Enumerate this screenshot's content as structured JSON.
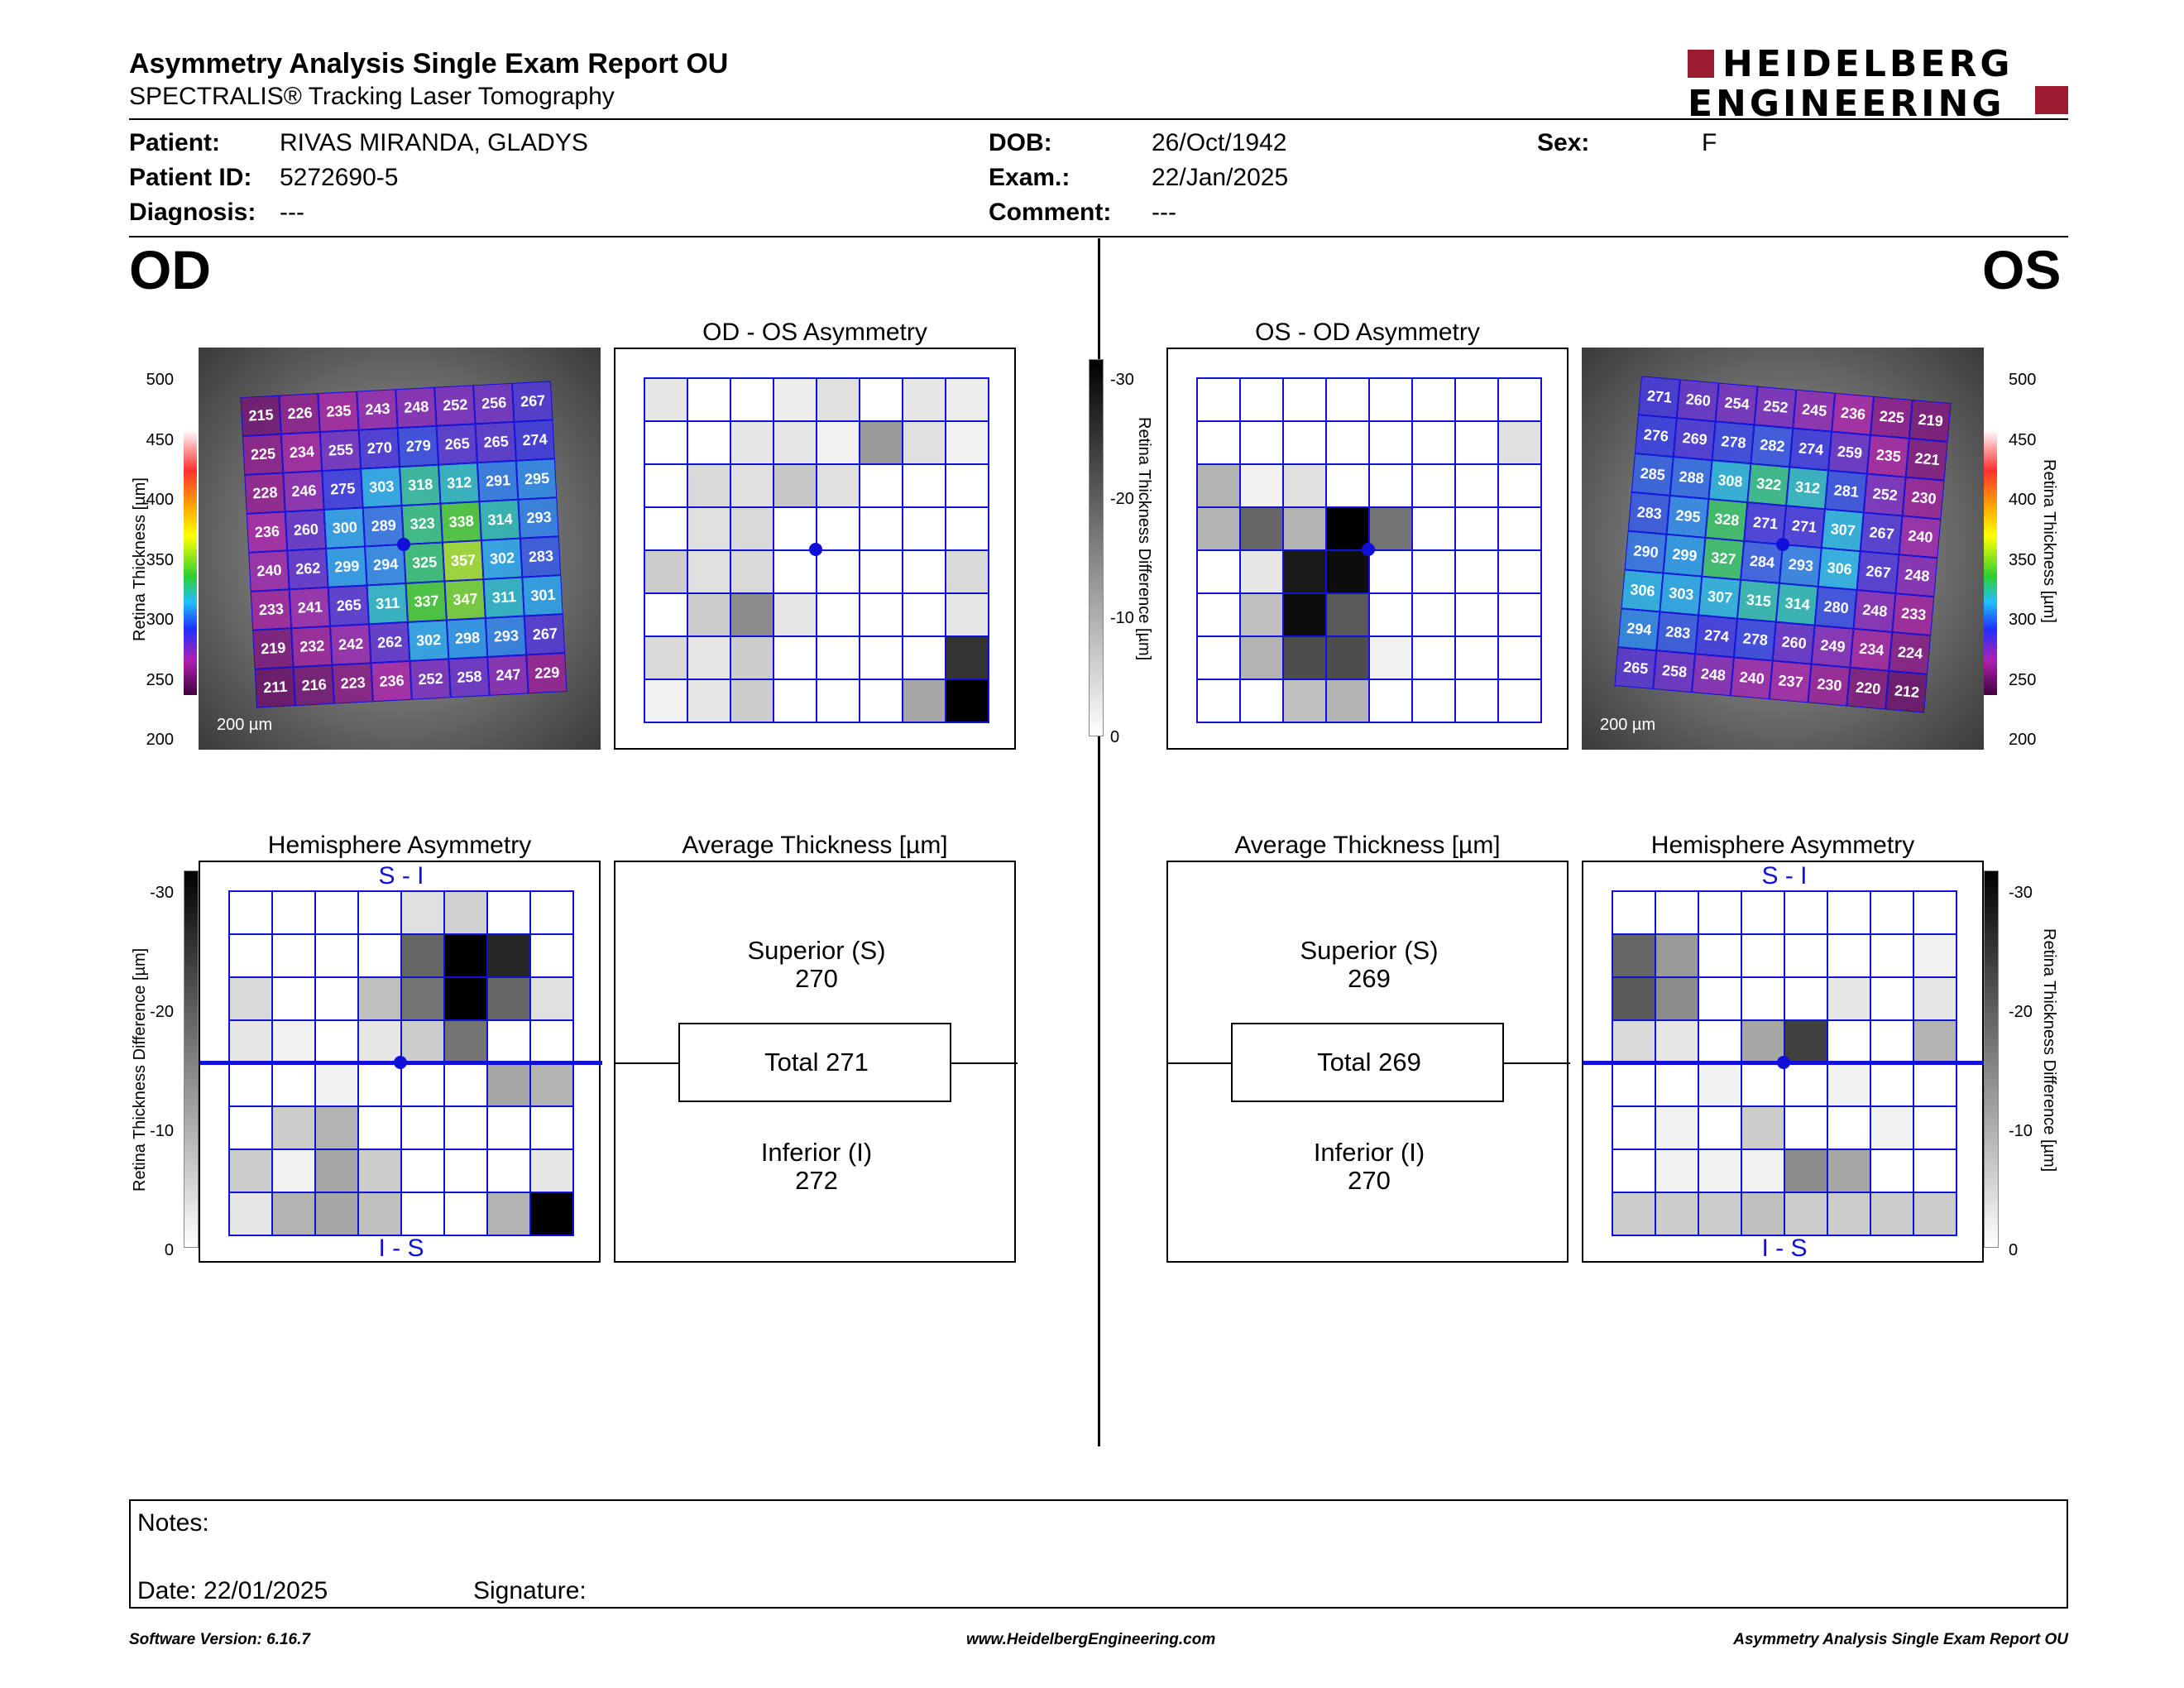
{
  "header": {
    "title": "Asymmetry Analysis Single Exam Report OU",
    "subtitle": "SPECTRALIS® Tracking Laser Tomography",
    "logo_line1": "HEIDELBERG",
    "logo_line2": "ENGINEERING"
  },
  "patient": {
    "patient_label": "Patient:",
    "patient_value": "RIVAS MIRANDA, GLADYS",
    "id_label": "Patient ID:",
    "id_value": "5272690-5",
    "diagnosis_label": "Diagnosis:",
    "diagnosis_value": "---",
    "dob_label": "DOB:",
    "dob_value": "26/Oct/1942",
    "exam_label": "Exam.:",
    "exam_value": "22/Jan/2025",
    "comment_label": "Comment:",
    "comment_value": "---",
    "sex_label": "Sex:",
    "sex_value": "F"
  },
  "eyes": {
    "left_label": "OD",
    "right_label": "OS"
  },
  "panels": {
    "od_os_title": "OD - OS Asymmetry",
    "os_od_title": "OS - OD Asymmetry",
    "hemi_title": "Hemisphere Asymmetry",
    "avg_title": "Average Thickness [µm]",
    "si_label": "S - I",
    "is_label": "I - S",
    "scale_bar": "200 µm"
  },
  "axes": {
    "thickness_label": "Retina Thickness [µm]",
    "diff_label": "Retina Thickness Difference [µm]",
    "thickness_ticks": [
      "500",
      "450",
      "400",
      "350",
      "300",
      "250",
      "200"
    ],
    "diff_ticks": [
      "-30",
      "-20",
      "-10",
      "0"
    ]
  },
  "od_average": {
    "superior_label": "Superior (S)",
    "superior_value": "270",
    "total": "Total 271",
    "inferior_label": "Inferior (I)",
    "inferior_value": "272"
  },
  "os_average": {
    "superior_label": "Superior (S)",
    "superior_value": "269",
    "total": "Total 269",
    "inferior_label": "Inferior (I)",
    "inferior_value": "270"
  },
  "od_thickness": [
    [
      215,
      226,
      235,
      243,
      248,
      252,
      256,
      267
    ],
    [
      225,
      234,
      255,
      270,
      279,
      265,
      265,
      274
    ],
    [
      228,
      246,
      275,
      303,
      318,
      312,
      291,
      295
    ],
    [
      236,
      260,
      300,
      289,
      323,
      338,
      314,
      293
    ],
    [
      240,
      262,
      299,
      294,
      325,
      357,
      302,
      283
    ],
    [
      233,
      241,
      265,
      311,
      337,
      347,
      311,
      301
    ],
    [
      219,
      232,
      242,
      262,
      302,
      298,
      293,
      267
    ],
    [
      211,
      216,
      223,
      236,
      252,
      258,
      247,
      229
    ]
  ],
  "os_thickness": [
    [
      271,
      260,
      254,
      252,
      245,
      236,
      225,
      219
    ],
    [
      276,
      269,
      278,
      282,
      274,
      259,
      235,
      221
    ],
    [
      285,
      288,
      308,
      322,
      312,
      281,
      252,
      230
    ],
    [
      283,
      295,
      328,
      271,
      271,
      307,
      267,
      240
    ],
    [
      290,
      299,
      327,
      284,
      293,
      306,
      267,
      248
    ],
    [
      306,
      303,
      307,
      315,
      314,
      280,
      248,
      233
    ],
    [
      294,
      283,
      274,
      278,
      260,
      249,
      234,
      224
    ],
    [
      265,
      258,
      248,
      240,
      237,
      230,
      220,
      212
    ]
  ],
  "od_asym_gray": [
    [
      0.1,
      0,
      0,
      0.07,
      0.12,
      0,
      0.1,
      0.07
    ],
    [
      0,
      0,
      0.1,
      0.1,
      0.05,
      0.4,
      0.12,
      0.05
    ],
    [
      0,
      0.15,
      0.12,
      0.22,
      0.12,
      0,
      0,
      0
    ],
    [
      0,
      0.12,
      0.15,
      0,
      0,
      0,
      0,
      0
    ],
    [
      0.2,
      0.12,
      0.15,
      0,
      0,
      0,
      0,
      0.15
    ],
    [
      0,
      0.2,
      0.45,
      0.1,
      0,
      0,
      0,
      0.1
    ],
    [
      0.15,
      0.1,
      0.2,
      0,
      0,
      0,
      0,
      0.8
    ],
    [
      0.05,
      0.1,
      0.2,
      0,
      0,
      0,
      0.35,
      1.0
    ]
  ],
  "os_asym_gray": [
    [
      0,
      0,
      0,
      0,
      0,
      0,
      0,
      0
    ],
    [
      0,
      0,
      0,
      0,
      0,
      0,
      0,
      0.12
    ],
    [
      0.3,
      0.05,
      0.12,
      0,
      0,
      0,
      0,
      0
    ],
    [
      0.3,
      0.6,
      0.3,
      1.0,
      0.55,
      0,
      0,
      0
    ],
    [
      0,
      0.1,
      0.9,
      0.95,
      0,
      0,
      0,
      0
    ],
    [
      0,
      0.25,
      0.95,
      0.65,
      0,
      0,
      0,
      0
    ],
    [
      0,
      0.3,
      0.7,
      0.7,
      0.05,
      0,
      0,
      0
    ],
    [
      0,
      0,
      0.25,
      0.3,
      0,
      0,
      0,
      0
    ]
  ],
  "od_hemi_gray": [
    [
      0,
      0,
      0,
      0,
      0.12,
      0.18,
      0,
      0
    ],
    [
      0,
      0,
      0,
      0,
      0.6,
      1.0,
      0.85,
      0
    ],
    [
      0.15,
      0,
      0,
      0.25,
      0.55,
      1.0,
      0.6,
      0.12
    ],
    [
      0.1,
      0.05,
      0,
      0.1,
      0.2,
      0.55,
      0,
      0
    ],
    [
      0,
      0,
      0.05,
      0,
      0,
      0,
      0.35,
      0.3
    ],
    [
      0,
      0.2,
      0.3,
      0,
      0,
      0,
      0,
      0
    ],
    [
      0.2,
      0.05,
      0.35,
      0.2,
      0,
      0,
      0,
      0.1
    ],
    [
      0.1,
      0.3,
      0.35,
      0.25,
      0,
      0,
      0.3,
      1.0
    ]
  ],
  "os_hemi_gray": [
    [
      0,
      0,
      0,
      0,
      0,
      0,
      0,
      0
    ],
    [
      0.6,
      0.4,
      0,
      0,
      0,
      0,
      0,
      0.05
    ],
    [
      0.65,
      0.45,
      0,
      0,
      0,
      0.1,
      0,
      0.1
    ],
    [
      0.15,
      0.1,
      0,
      0.35,
      0.75,
      0,
      0,
      0.3
    ],
    [
      0,
      0,
      0.05,
      0,
      0,
      0.05,
      0,
      0
    ],
    [
      0,
      0.05,
      0,
      0.2,
      0,
      0,
      0.05,
      0
    ],
    [
      0,
      0.05,
      0.05,
      0.05,
      0.45,
      0.35,
      0,
      0
    ],
    [
      0.2,
      0.2,
      0.2,
      0.25,
      0.2,
      0.2,
      0.2,
      0.2
    ]
  ],
  "notes": {
    "notes_label": "Notes:",
    "date_label": "Date: 22/01/2025",
    "signature_label": "Signature:"
  },
  "footer": {
    "software": "Software Version: 6.16.7",
    "website": "www.HeidelbergEngineering.com",
    "report_name": "Asymmetry Analysis Single Exam Report OU"
  },
  "colors": {
    "grid_blue": "#1010d8",
    "logo_red": "#9b1b30"
  }
}
